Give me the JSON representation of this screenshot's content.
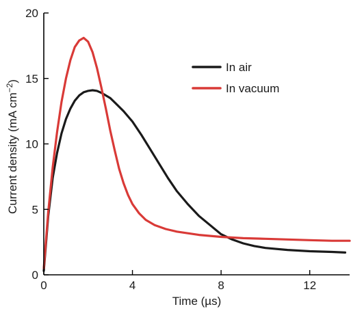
{
  "chart_data": {
    "type": "line",
    "xlabel": "Time (µs)",
    "ylabel": "Current density (mA cm",
    "ylabel_sup": "−2",
    "ylabel_close": ")",
    "xlim": [
      0,
      13.8
    ],
    "ylim": [
      0,
      20
    ],
    "xticks": [
      0,
      4,
      8,
      12
    ],
    "yticks": [
      0,
      5,
      10,
      15,
      20
    ],
    "grid": false,
    "legend_position": "top-right",
    "series": [
      {
        "name": "In air",
        "color": "#1a1a1a",
        "x": [
          0,
          0.2,
          0.4,
          0.6,
          0.8,
          1.0,
          1.2,
          1.4,
          1.6,
          1.8,
          2.0,
          2.2,
          2.4,
          2.6,
          2.8,
          3.0,
          3.3,
          3.6,
          4.0,
          4.4,
          4.8,
          5.2,
          5.6,
          6.0,
          6.5,
          7.0,
          7.5,
          8.0,
          8.5,
          9.0,
          9.5,
          10.0,
          11.0,
          12.0,
          13.0,
          13.6
        ],
        "y": [
          0.3,
          4.5,
          7.4,
          9.3,
          10.8,
          11.9,
          12.7,
          13.3,
          13.7,
          13.95,
          14.05,
          14.1,
          14.05,
          13.9,
          13.7,
          13.5,
          13.0,
          12.5,
          11.7,
          10.7,
          9.6,
          8.5,
          7.4,
          6.4,
          5.4,
          4.5,
          3.8,
          3.1,
          2.7,
          2.4,
          2.2,
          2.05,
          1.9,
          1.8,
          1.75,
          1.7
        ]
      },
      {
        "name": "In vacuum",
        "color": "#d93a37",
        "x": [
          0,
          0.2,
          0.4,
          0.6,
          0.8,
          1.0,
          1.2,
          1.4,
          1.6,
          1.8,
          2.0,
          2.2,
          2.4,
          2.6,
          2.8,
          3.0,
          3.2,
          3.4,
          3.6,
          3.8,
          4.0,
          4.3,
          4.6,
          5.0,
          5.5,
          6.0,
          7.0,
          8.0,
          9.0,
          10.0,
          11.0,
          12.0,
          13.0,
          13.8
        ],
        "y": [
          0.5,
          4.8,
          8.2,
          10.9,
          13.2,
          15.0,
          16.4,
          17.4,
          17.9,
          18.1,
          17.8,
          17.0,
          15.8,
          14.3,
          12.7,
          11.0,
          9.5,
          8.1,
          7.0,
          6.1,
          5.4,
          4.7,
          4.2,
          3.8,
          3.5,
          3.3,
          3.05,
          2.9,
          2.8,
          2.75,
          2.7,
          2.65,
          2.6,
          2.6
        ]
      }
    ]
  }
}
